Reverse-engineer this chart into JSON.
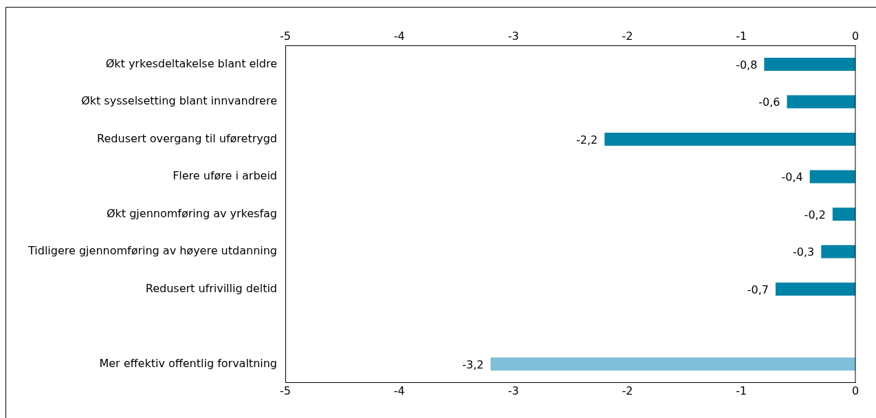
{
  "chart_data": {
    "type": "bar",
    "orientation": "horizontal",
    "categories": [
      "Økt yrkesdeltakelse blant eldre",
      "Økt sysselsetting blant innvandrere",
      "Redusert overgang til uføretrygd",
      "Flere uføre i arbeid",
      "Økt gjennomføring av yrkesfag",
      "Tidligere gjennomføring av høyere utdanning",
      "Redusert ufrivillig deltid",
      null,
      "Mer effektiv offentlig forvaltning"
    ],
    "values": [
      -0.8,
      -0.6,
      -2.2,
      -0.4,
      -0.2,
      -0.3,
      -0.7,
      null,
      -3.2
    ],
    "value_labels": [
      "-0,8",
      "-0,6",
      "-2,2",
      "-0,4",
      "-0,2",
      "-0,3",
      "-0,7",
      null,
      "-3,2"
    ],
    "colors": [
      "#0083a6",
      "#0083a6",
      "#0083a6",
      "#0083a6",
      "#0083a6",
      "#0083a6",
      "#0083a6",
      "#0083a6",
      "#7fc0d8"
    ],
    "xlim": [
      -5,
      0
    ],
    "xticks": [
      -5,
      -4,
      -3,
      -2,
      -1,
      0
    ],
    "x2lim": [
      -5,
      0
    ],
    "x2ticks": [
      -5,
      -4,
      -3,
      -2,
      -1,
      0
    ],
    "grid": false,
    "legend": false
  }
}
